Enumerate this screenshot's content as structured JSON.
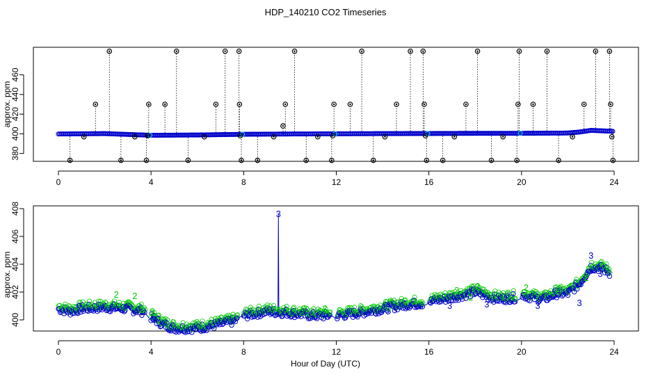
{
  "title": "HDP_140210  CO2 Timeseries",
  "xlabel": "Hour of Day (UTC)",
  "colors": {
    "blue": "#0000cc",
    "green": "#00cc00",
    "cyan": "#00cccc",
    "black": "#000000"
  },
  "chart_data": [
    {
      "type": "scatter",
      "ylabel": "approx. ppm",
      "xlim": [
        0,
        24
      ],
      "ylim": [
        372,
        488
      ],
      "xticks": [
        "0",
        "4",
        "8",
        "12",
        "16",
        "20",
        "24"
      ],
      "yticks": [
        "380",
        "400",
        "420",
        "440",
        "460"
      ],
      "baseline": {
        "x": [
          0,
          2,
          4,
          6,
          8,
          10,
          12,
          14,
          16,
          18,
          20,
          22,
          22.5,
          23,
          23.5,
          24
        ],
        "y": [
          399.8,
          400.2,
          398.5,
          398.8,
          399.5,
          399.8,
          400.0,
          400.2,
          400.3,
          400.5,
          400.5,
          400.8,
          401.8,
          403.5,
          403.0,
          402.5
        ]
      },
      "spikes": {
        "x": [
          0.5,
          1.1,
          1.6,
          2.2,
          2.7,
          3.3,
          3.8,
          3.85,
          3.9,
          4.6,
          5.1,
          5.6,
          6.3,
          6.8,
          7.2,
          7.8,
          7.82,
          7.85,
          7.9,
          8.6,
          9.3,
          9.7,
          9.8,
          10.2,
          10.7,
          11.2,
          11.8,
          11.85,
          11.9,
          12.6,
          13.1,
          13.6,
          14.1,
          14.6,
          15.2,
          15.75,
          15.8,
          15.85,
          15.9,
          16.6,
          17.1,
          17.6,
          18.1,
          18.7,
          19.2,
          19.8,
          19.85,
          19.9,
          20.5,
          21.1,
          21.6,
          22.2,
          22.7,
          23.2,
          23.8,
          23.85,
          23.9,
          23.95
        ],
        "y": [
          373,
          397,
          430,
          484,
          373,
          397,
          373,
          398,
          430,
          430,
          484,
          373,
          397,
          430,
          484,
          484,
          430,
          398,
          373,
          373,
          397,
          408,
          430,
          484,
          373,
          397,
          373,
          398,
          430,
          430,
          484,
          373,
          397,
          430,
          484,
          484,
          430,
          398,
          373,
          373,
          397,
          430,
          484,
          373,
          397,
          373,
          430,
          484,
          430,
          484,
          373,
          397,
          430,
          484,
          484,
          430,
          397,
          373
        ]
      }
    },
    {
      "type": "scatter",
      "ylabel": "approx. ppm",
      "xlim": [
        0,
        24
      ],
      "ylim": [
        399.2,
        408.2
      ],
      "xticks": [
        "0",
        "4",
        "8",
        "12",
        "16",
        "20",
        "24"
      ],
      "yticks": [
        "400",
        "402",
        "404",
        "406",
        "408"
      ],
      "baseline": {
        "x": [
          0,
          0.5,
          1,
          2,
          3,
          3.7,
          4,
          4.5,
          5,
          6,
          7,
          7.8,
          8,
          9,
          10,
          11,
          12,
          13,
          14,
          15,
          15.8,
          16,
          17,
          18,
          18.5,
          19,
          19.8,
          20,
          20.5,
          21,
          21.5,
          22,
          22.5,
          23,
          23.5,
          23.8
        ],
        "y": [
          400.8,
          400.6,
          400.8,
          400.9,
          400.8,
          400.6,
          400.2,
          399.7,
          399.4,
          399.4,
          399.7,
          400.0,
          400.3,
          400.6,
          400.5,
          400.3,
          400.3,
          400.5,
          400.8,
          401.1,
          401.2,
          401.3,
          401.6,
          402.0,
          401.7,
          401.5,
          401.6,
          401.8,
          401.6,
          401.5,
          401.9,
          401.9,
          402.6,
          403.8,
          403.7,
          403.4
        ]
      },
      "spike": {
        "x": 9.5,
        "y": 407.6,
        "label": "3"
      },
      "label_points": [
        {
          "x": 2.5,
          "y": 401.8,
          "label": "2"
        },
        {
          "x": 3.3,
          "y": 401.7,
          "label": "2"
        },
        {
          "x": 3.6,
          "y": 400.7,
          "label": "2"
        },
        {
          "x": 4.05,
          "y": 400.5,
          "label": "2"
        },
        {
          "x": 4.1,
          "y": 400.0,
          "label": "3"
        },
        {
          "x": 10.5,
          "y": 400.5,
          "label": "2"
        },
        {
          "x": 11.5,
          "y": 400.8,
          "label": "2"
        },
        {
          "x": 17.2,
          "y": 402.1,
          "label": "2"
        },
        {
          "x": 17.8,
          "y": 401.6,
          "label": "2"
        },
        {
          "x": 18.1,
          "y": 402.4,
          "label": "2"
        },
        {
          "x": 16.9,
          "y": 401.0,
          "label": "3"
        },
        {
          "x": 18.5,
          "y": 401.1,
          "label": "3"
        },
        {
          "x": 20.2,
          "y": 402.3,
          "label": "2"
        },
        {
          "x": 20.7,
          "y": 401.0,
          "label": "3"
        },
        {
          "x": 21.6,
          "y": 402.2,
          "label": "2"
        },
        {
          "x": 22.5,
          "y": 401.2,
          "label": "3"
        },
        {
          "x": 22.8,
          "y": 403.0,
          "label": "2"
        },
        {
          "x": 23.0,
          "y": 404.6,
          "label": "3"
        },
        {
          "x": 23.4,
          "y": 403.3,
          "label": "3"
        }
      ]
    }
  ]
}
